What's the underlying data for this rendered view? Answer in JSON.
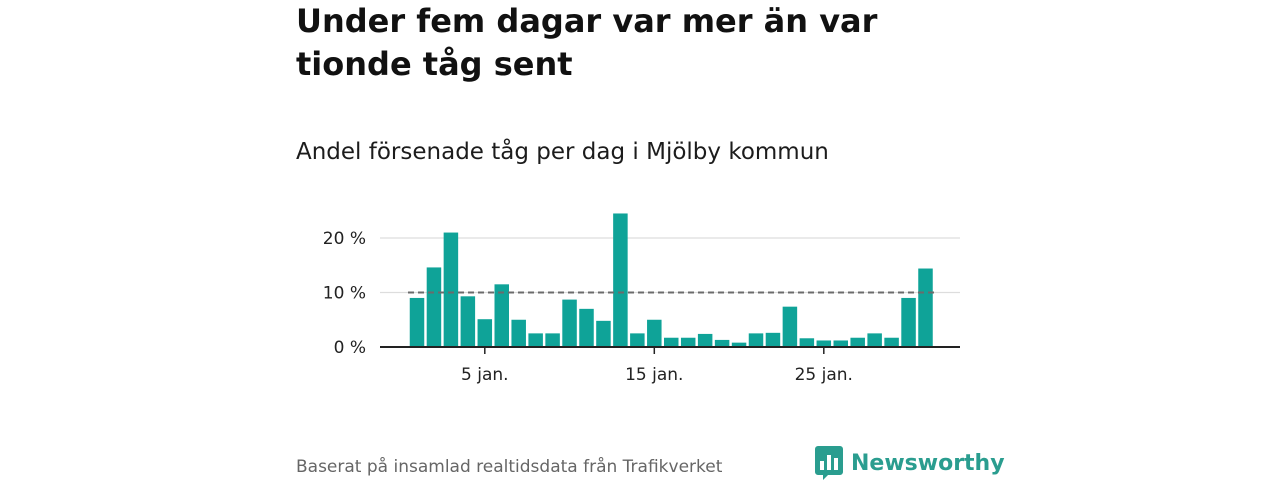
{
  "header": {
    "title": "Under fem dagar var mer än var tionde tåg sent",
    "subtitle": "Andel försenade tåg per dag i Mjölby kommun"
  },
  "footer": {
    "source": "Baserat på insamlad realtidsdata från Trafikverket",
    "logo_text": "Newsworthy"
  },
  "colors": {
    "bar": "#0fa398",
    "reference_line": "#6b6b6b",
    "gridline": "#dddddd",
    "axis": "#222222",
    "logo": "#2a9d8f"
  },
  "chart_data": {
    "type": "bar",
    "title": "Andel försenade tåg per dag i Mjölby kommun",
    "xlabel": "",
    "ylabel": "",
    "x": [
      1,
      2,
      3,
      4,
      5,
      6,
      7,
      8,
      9,
      10,
      11,
      12,
      13,
      14,
      15,
      16,
      17,
      18,
      19,
      20,
      21,
      22,
      23,
      24,
      25,
      26,
      27,
      28,
      29,
      30,
      31
    ],
    "values": [
      9,
      14.6,
      21,
      9.3,
      5.1,
      11.5,
      5,
      2.5,
      2.5,
      8.7,
      7,
      4.8,
      24.5,
      2.5,
      5,
      1.7,
      1.7,
      2.4,
      1.3,
      0.8,
      2.5,
      2.6,
      7.4,
      1.6,
      1.2,
      1.2,
      1.7,
      2.5,
      1.7,
      9,
      14.4
    ],
    "reference_line": 10,
    "ylim": [
      0,
      25
    ],
    "y_ticks": [
      0,
      10,
      20
    ],
    "y_tick_labels": [
      "0 %",
      "10 %",
      "20 %"
    ],
    "x_ticks": [
      5,
      15,
      25
    ],
    "x_tick_labels": [
      "5 jan.",
      "15 jan.",
      "25 jan."
    ],
    "grid": true,
    "legend": "none"
  }
}
